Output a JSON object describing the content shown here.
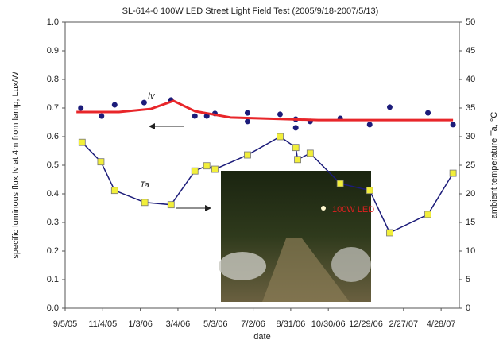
{
  "chart_data": {
    "type": "line",
    "title": "SL-614-0  100W LED Street Light Field Test (2005/9/18-2007/5/13)",
    "x_label": "date",
    "y_label": "specific luminous flux Iv at 4m from lamp, Lux/W",
    "y2_label": "ambient temperature Ta, °C",
    "photo_label": "100W LED",
    "xlim": [
      0,
      629
    ],
    "xticks": [
      {
        "value": 0,
        "label": "9/5/05"
      },
      {
        "value": 60,
        "label": "11/4/05"
      },
      {
        "value": 120,
        "label": "1/3/06"
      },
      {
        "value": 180,
        "label": "3/4/06"
      },
      {
        "value": 240,
        "label": "5/3/06"
      },
      {
        "value": 300,
        "label": "7/2/06"
      },
      {
        "value": 360,
        "label": "8/31/06"
      },
      {
        "value": 420,
        "label": "10/30/06"
      },
      {
        "value": 480,
        "label": "12/29/06"
      },
      {
        "value": 540,
        "label": "2/27/07"
      },
      {
        "value": 600,
        "label": "4/28/07"
      }
    ],
    "ylim": [
      0,
      1
    ],
    "yticks": [
      {
        "value": 0,
        "label": "0.0"
      },
      {
        "value": 0.1,
        "label": "0.1"
      },
      {
        "value": 0.2,
        "label": "0.2"
      },
      {
        "value": 0.3,
        "label": "0.3"
      },
      {
        "value": 0.4,
        "label": "0.4"
      },
      {
        "value": 0.5,
        "label": "0.5"
      },
      {
        "value": 0.6,
        "label": "0.6"
      },
      {
        "value": 0.7,
        "label": "0.7"
      },
      {
        "value": 0.8,
        "label": "0.8"
      },
      {
        "value": 0.9,
        "label": "0.9"
      },
      {
        "value": 1,
        "label": "1.0"
      }
    ],
    "y2lim": [
      0,
      50
    ],
    "y2ticks": [
      0,
      5,
      10,
      15,
      20,
      25,
      30,
      35,
      40,
      45,
      50
    ],
    "series": [
      {
        "name": "Iv",
        "mode": "markers",
        "color": "#1c1c7a",
        "x": [
          25,
          58,
          79,
          126,
          169,
          207,
          226,
          239,
          291,
          291,
          343,
          368,
          368,
          391,
          439,
          486,
          518,
          579,
          619
        ],
        "values": [
          0.7,
          0.672,
          0.711,
          0.719,
          0.728,
          0.672,
          0.672,
          0.681,
          0.683,
          0.653,
          0.678,
          0.661,
          0.631,
          0.653,
          0.664,
          0.642,
          0.703,
          0.683,
          0.642
        ]
      },
      {
        "mode": "line",
        "color": "#e8262a",
        "x": [
          18,
          86,
          137,
          173,
          207,
          264,
          404,
          619
        ],
        "values": [
          0.686,
          0.686,
          0.697,
          0.725,
          0.689,
          0.667,
          0.658,
          0.658
        ]
      },
      {
        "name": "Ta",
        "mode": "line+markers",
        "color": "#1c1c7a",
        "marker_color": "#f2ef3a",
        "axis": "y2",
        "x": [
          27,
          57,
          79,
          127,
          169,
          207,
          226,
          239,
          291,
          343,
          368,
          371,
          391,
          439,
          486,
          518,
          579,
          619
        ],
        "values": [
          29.0,
          25.6,
          20.6,
          18.5,
          18.1,
          24.0,
          24.9,
          24.3,
          26.8,
          30.0,
          28.1,
          26.0,
          27.1,
          21.8,
          20.6,
          13.2,
          16.4,
          23.6
        ]
      }
    ]
  }
}
